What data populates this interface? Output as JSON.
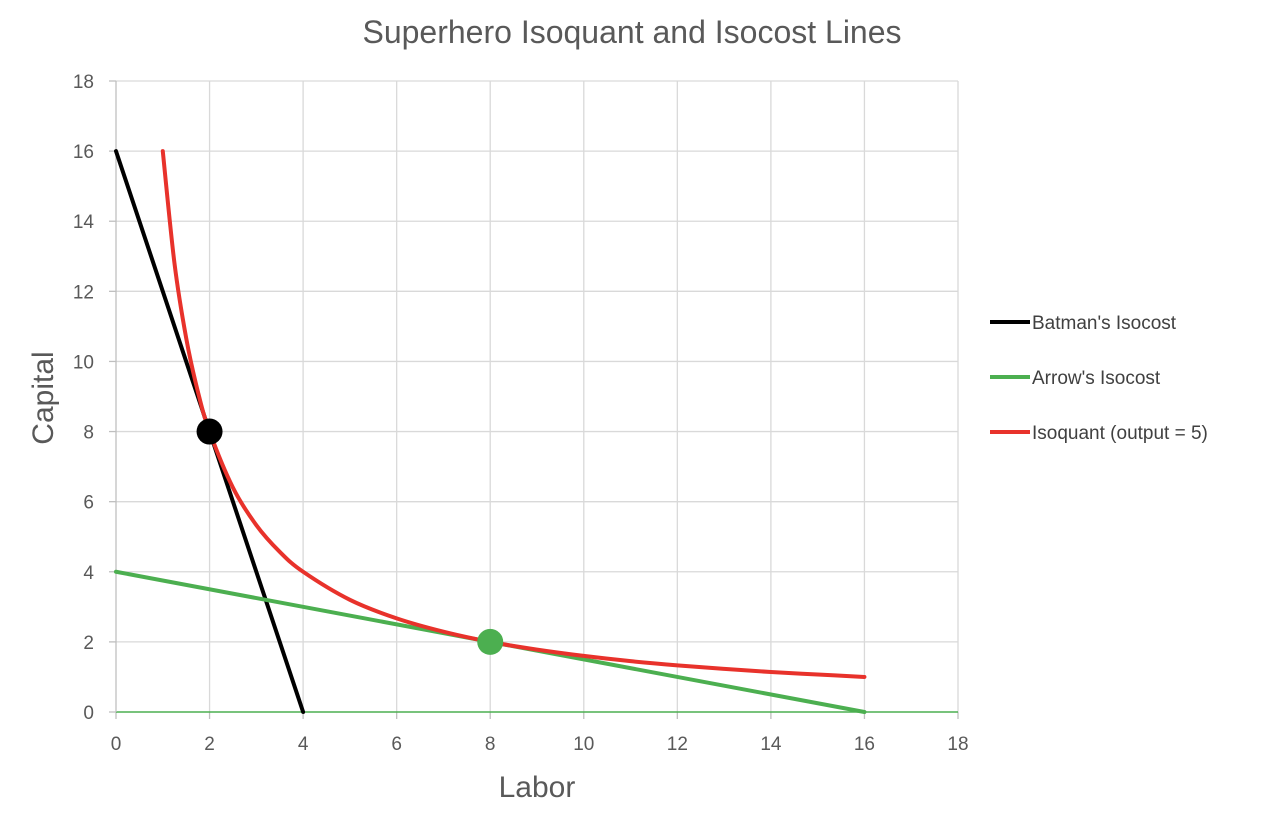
{
  "chart_data": {
    "type": "line",
    "title": "Superhero Isoquant and Isocost Lines",
    "xlabel": "Labor",
    "ylabel": "Capital",
    "xlim": [
      0,
      18
    ],
    "ylim": [
      0,
      18
    ],
    "xticks": [
      0,
      2,
      4,
      6,
      8,
      10,
      12,
      14,
      16,
      18
    ],
    "yticks": [
      0,
      2,
      4,
      6,
      8,
      10,
      12,
      14,
      16,
      18
    ],
    "grid": true,
    "legend_position": "right",
    "series": [
      {
        "name": "Batman's Isocost",
        "color": "#000000",
        "x": [
          0,
          4
        ],
        "y": [
          16,
          0
        ]
      },
      {
        "name": "Arrow's Isocost",
        "color": "#4caf50",
        "x": [
          0,
          16
        ],
        "y": [
          4,
          0
        ]
      },
      {
        "name": "Isoquant (output = 5)",
        "color": "#e8322b",
        "x": [
          1,
          1.25,
          1.5,
          1.75,
          2,
          2.5,
          3,
          3.5,
          4,
          5,
          6,
          7,
          8,
          9,
          10,
          11,
          12,
          13,
          14,
          15,
          16
        ],
        "y": [
          16,
          12.8,
          10.67,
          9.14,
          8,
          6.4,
          5.33,
          4.57,
          4,
          3.2,
          2.67,
          2.29,
          2,
          1.78,
          1.6,
          1.45,
          1.33,
          1.23,
          1.14,
          1.07,
          1
        ]
      }
    ],
    "points": [
      {
        "x": 2,
        "y": 8,
        "color": "#000000"
      },
      {
        "x": 8,
        "y": 2,
        "color": "#4caf50"
      }
    ]
  }
}
